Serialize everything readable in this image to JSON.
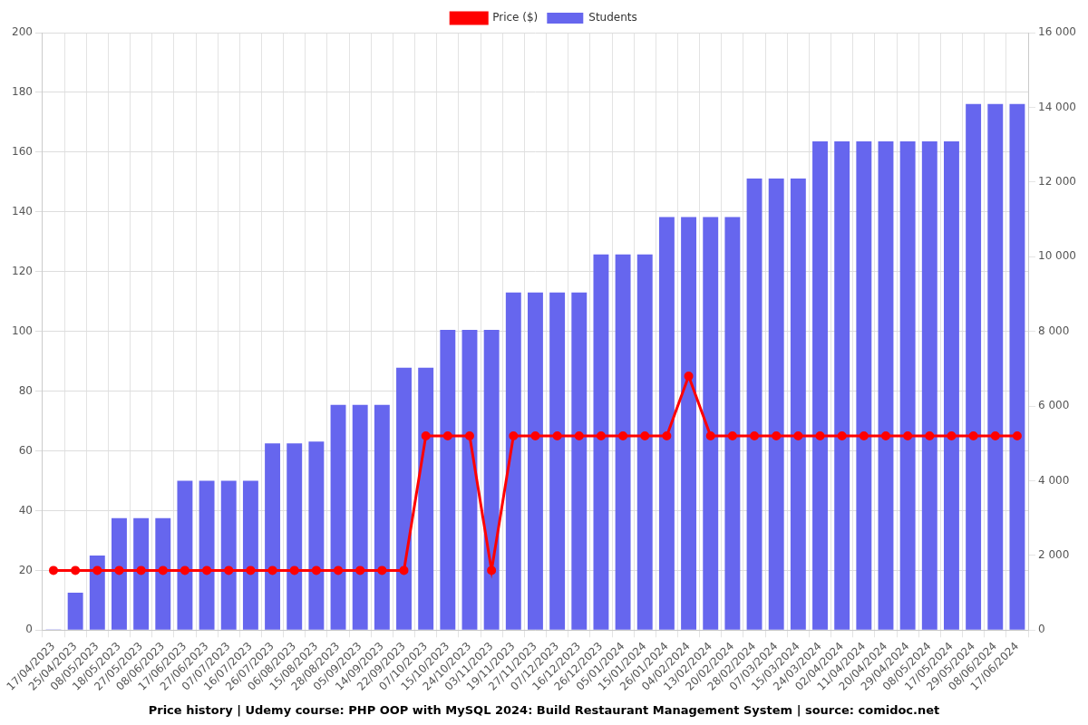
{
  "chart_data": {
    "type": "bar",
    "title": "Price history | Udemy course: PHP OOP with MySQL 2024: Build Restaurant Management System | source: comidoc.net",
    "categories": [
      "17/04/2023",
      "25/04/2023",
      "08/05/2023",
      "18/05/2023",
      "27/05/2023",
      "08/06/2023",
      "17/06/2023",
      "27/06/2023",
      "07/07/2023",
      "16/07/2023",
      "26/07/2023",
      "06/08/2023",
      "15/08/2023",
      "28/08/2023",
      "05/09/2023",
      "14/09/2023",
      "22/09/2023",
      "07/10/2023",
      "15/10/2023",
      "24/10/2023",
      "03/11/2023",
      "19/11/2023",
      "27/11/2023",
      "07/12/2023",
      "16/12/2023",
      "26/12/2023",
      "05/01/2024",
      "15/01/2024",
      "26/01/2024",
      "04/02/2024",
      "13/02/2024",
      "20/02/2024",
      "28/02/2024",
      "07/03/2024",
      "15/03/2024",
      "24/03/2024",
      "02/04/2024",
      "11/04/2024",
      "20/04/2024",
      "29/04/2024",
      "08/05/2024",
      "17/05/2024",
      "29/05/2024",
      "08/06/2024",
      "17/06/2024"
    ],
    "series": [
      {
        "name": "Price ($)",
        "type": "line",
        "color": "#ff0000",
        "marker": "circle",
        "values": [
          20,
          20,
          20,
          20,
          20,
          20,
          20,
          20,
          20,
          20,
          20,
          20,
          20,
          20,
          20,
          20,
          20,
          65,
          65,
          65,
          20,
          65,
          65,
          65,
          65,
          65,
          65,
          65,
          65,
          85,
          65,
          65,
          65,
          65,
          65,
          65,
          65,
          65,
          65,
          65,
          65,
          65,
          65,
          65,
          65
        ]
      },
      {
        "name": "Students",
        "type": "bar",
        "color": "#6666ee",
        "axis": "y2",
        "values": [
          10,
          1000,
          2000,
          3000,
          3000,
          3000,
          4000,
          4000,
          4000,
          4000,
          5000,
          5000,
          5050,
          6030,
          6030,
          6030,
          7030,
          7030,
          8040,
          8040,
          8040,
          9040,
          9040,
          9040,
          9040,
          10060,
          10060,
          10060,
          11060,
          11060,
          11060,
          11060,
          12090,
          12090,
          12090,
          13090,
          13090,
          13090,
          13090,
          13090,
          13090,
          13090,
          14090,
          14090,
          14090
        ]
      }
    ],
    "ylim": [
      0,
      200
    ],
    "yticks": [
      0,
      20,
      40,
      60,
      80,
      100,
      120,
      140,
      160,
      180,
      200
    ],
    "y2lim": [
      0,
      16000
    ],
    "y2ticks": [
      0,
      {
        "value": 2000,
        "label": "2 000"
      },
      {
        "value": 4000,
        "label": "4 000"
      },
      {
        "value": 6000,
        "label": "6 000"
      },
      {
        "value": 8000,
        "label": "8 000"
      },
      {
        "value": 10000,
        "label": "10 000"
      },
      {
        "value": 12000,
        "label": "12 000"
      },
      {
        "value": 14000,
        "label": "14 000"
      },
      {
        "value": 16000,
        "label": "16 000"
      }
    ],
    "grid": true,
    "legend": "top"
  }
}
